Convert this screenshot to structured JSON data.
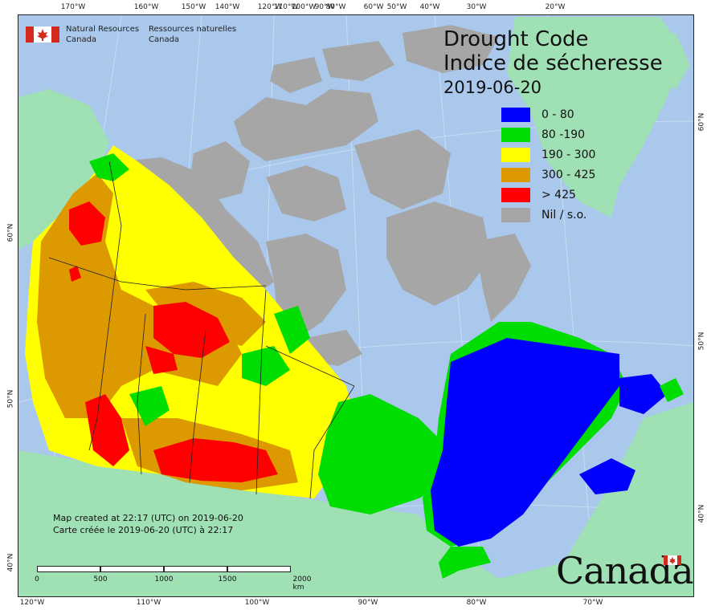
{
  "agency": {
    "name_en_line1": "Natural Resources",
    "name_en_line2": "Canada",
    "name_fr_line1": "Ressources naturelles",
    "name_fr_line2": "Canada"
  },
  "title": {
    "en": "Drought Code",
    "fr": "Indice de sécheresse",
    "date": "2019-06-20"
  },
  "legend": [
    {
      "label": "0 - 80",
      "color": "#0000ff"
    },
    {
      "label": "80 -190",
      "color": "#00dd00"
    },
    {
      "label": "190 - 300",
      "color": "#ffff00"
    },
    {
      "label": "300 - 425",
      "color": "#dd9900"
    },
    {
      "label": "> 425",
      "color": "#ff0000"
    },
    {
      "label": "Nil / s.o.",
      "color": "#a6a6a6"
    }
  ],
  "created": {
    "en": "Map created at 22:17 (UTC) on 2019-06-20",
    "fr": "Carte créée le 2019-06-20 (UTC) à 22:17"
  },
  "scale": {
    "labels": [
      "0",
      "500",
      "1000",
      "1500",
      "2000  km"
    ]
  },
  "wordmark": "Canada",
  "ticks": {
    "top": [
      "170°W",
      "160°W",
      "150°W",
      "140°W",
      "120°W",
      "110°W",
      "100°W",
      "90°W",
      "80°W",
      "60°W",
      "50°W",
      "40°W",
      "30°W",
      "20°W"
    ],
    "bottom": [
      "120°W",
      "110°W",
      "100°W",
      "90°W",
      "80°W",
      "70°W"
    ],
    "left": [
      "60°N",
      "50°N",
      "40°N"
    ],
    "right": [
      "60°N",
      "50°N",
      "40°N"
    ]
  },
  "colors": {
    "ocean": "#a9c8ec",
    "land_outside": "#9fe0b4",
    "no_data": "#a6a6a6",
    "class_0_80": "#0000ff",
    "class_80_190": "#00dd00",
    "class_190_300": "#ffff00",
    "class_300_425": "#dd9900",
    "class_gt_425": "#ff0000"
  }
}
